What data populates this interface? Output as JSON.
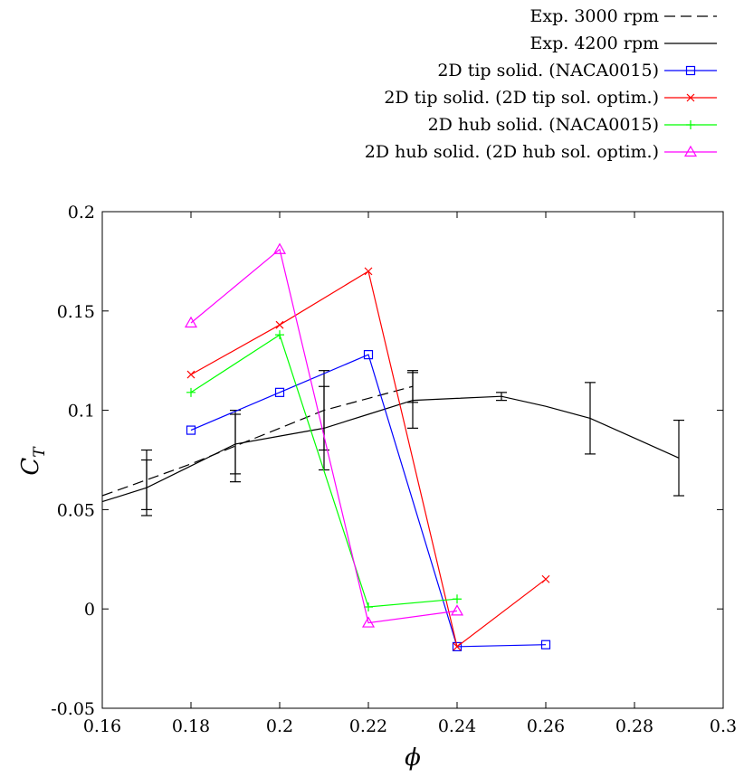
{
  "chart_data": {
    "type": "line",
    "xlabel": "ϕ",
    "ylabel": "C",
    "ylabel_sub": "T",
    "xlim": [
      0.16,
      0.3
    ],
    "ylim": [
      -0.05,
      0.2
    ],
    "x_ticks": [
      "0.16",
      "0.18",
      "0.2",
      "0.22",
      "0.24",
      "0.26",
      "0.28",
      "0.3"
    ],
    "y_ticks": [
      "-0.05",
      "0",
      "0.05",
      "0.1",
      "0.15",
      "0.2"
    ],
    "x_tick_values": [
      0.16,
      0.18,
      0.2,
      0.22,
      0.24,
      0.26,
      0.28,
      0.3
    ],
    "y_tick_values": [
      -0.05,
      0,
      0.05,
      0.1,
      0.15,
      0.2
    ],
    "grid": false,
    "legend_position": "above plot, right-aligned",
    "series": [
      {
        "name": "Exp. 3000 rpm",
        "color": "#000000",
        "style": "dashed",
        "marker": "none",
        "x": [
          0.16,
          0.17,
          0.18,
          0.19,
          0.2,
          0.21,
          0.22,
          0.23
        ],
        "y": [
          0.057,
          0.065,
          0.073,
          0.082,
          0.091,
          0.1,
          0.106,
          0.112
        ],
        "error": [
          null,
          0.015,
          null,
          0.018,
          null,
          0.02,
          null,
          0.008
        ]
      },
      {
        "name": "Exp. 4200 rpm",
        "color": "#000000",
        "style": "solid",
        "marker": "none",
        "x": [
          0.16,
          0.17,
          0.18,
          0.19,
          0.2,
          0.21,
          0.22,
          0.23,
          0.24,
          0.25,
          0.26,
          0.27,
          0.28,
          0.29
        ],
        "y": [
          0.054,
          0.061,
          0.072,
          0.083,
          0.087,
          0.091,
          0.098,
          0.105,
          0.106,
          0.107,
          0.102,
          0.096,
          0.086,
          0.076
        ],
        "error": [
          null,
          0.014,
          null,
          0.015,
          null,
          0.021,
          null,
          0.014,
          null,
          0.002,
          null,
          0.018,
          null,
          0.019
        ]
      },
      {
        "name": "2D tip solid. (NACA0015)",
        "color": "#0000ff",
        "style": "solid",
        "marker": "square",
        "x": [
          0.18,
          0.2,
          0.22,
          0.24,
          0.26
        ],
        "y": [
          0.09,
          0.109,
          0.128,
          -0.019,
          -0.018
        ]
      },
      {
        "name": "2D tip solid. (2D tip sol. optim.)",
        "color": "#ff0000",
        "style": "solid",
        "marker": "x",
        "x": [
          0.18,
          0.2,
          0.22,
          0.24,
          0.26
        ],
        "y": [
          0.118,
          0.143,
          0.17,
          -0.019,
          0.015
        ]
      },
      {
        "name": "2D hub solid. (NACA0015)",
        "color": "#00ff00",
        "style": "solid",
        "marker": "plus",
        "x": [
          0.18,
          0.2,
          0.22,
          0.24
        ],
        "y": [
          0.109,
          0.138,
          0.001,
          0.005
        ]
      },
      {
        "name": "2D hub solid. (2D hub sol. optim.)",
        "color": "#ff00ff",
        "style": "solid",
        "marker": "triangle",
        "x": [
          0.18,
          0.2,
          0.22,
          0.24
        ],
        "y": [
          0.144,
          0.181,
          -0.007,
          -0.001
        ]
      }
    ]
  }
}
